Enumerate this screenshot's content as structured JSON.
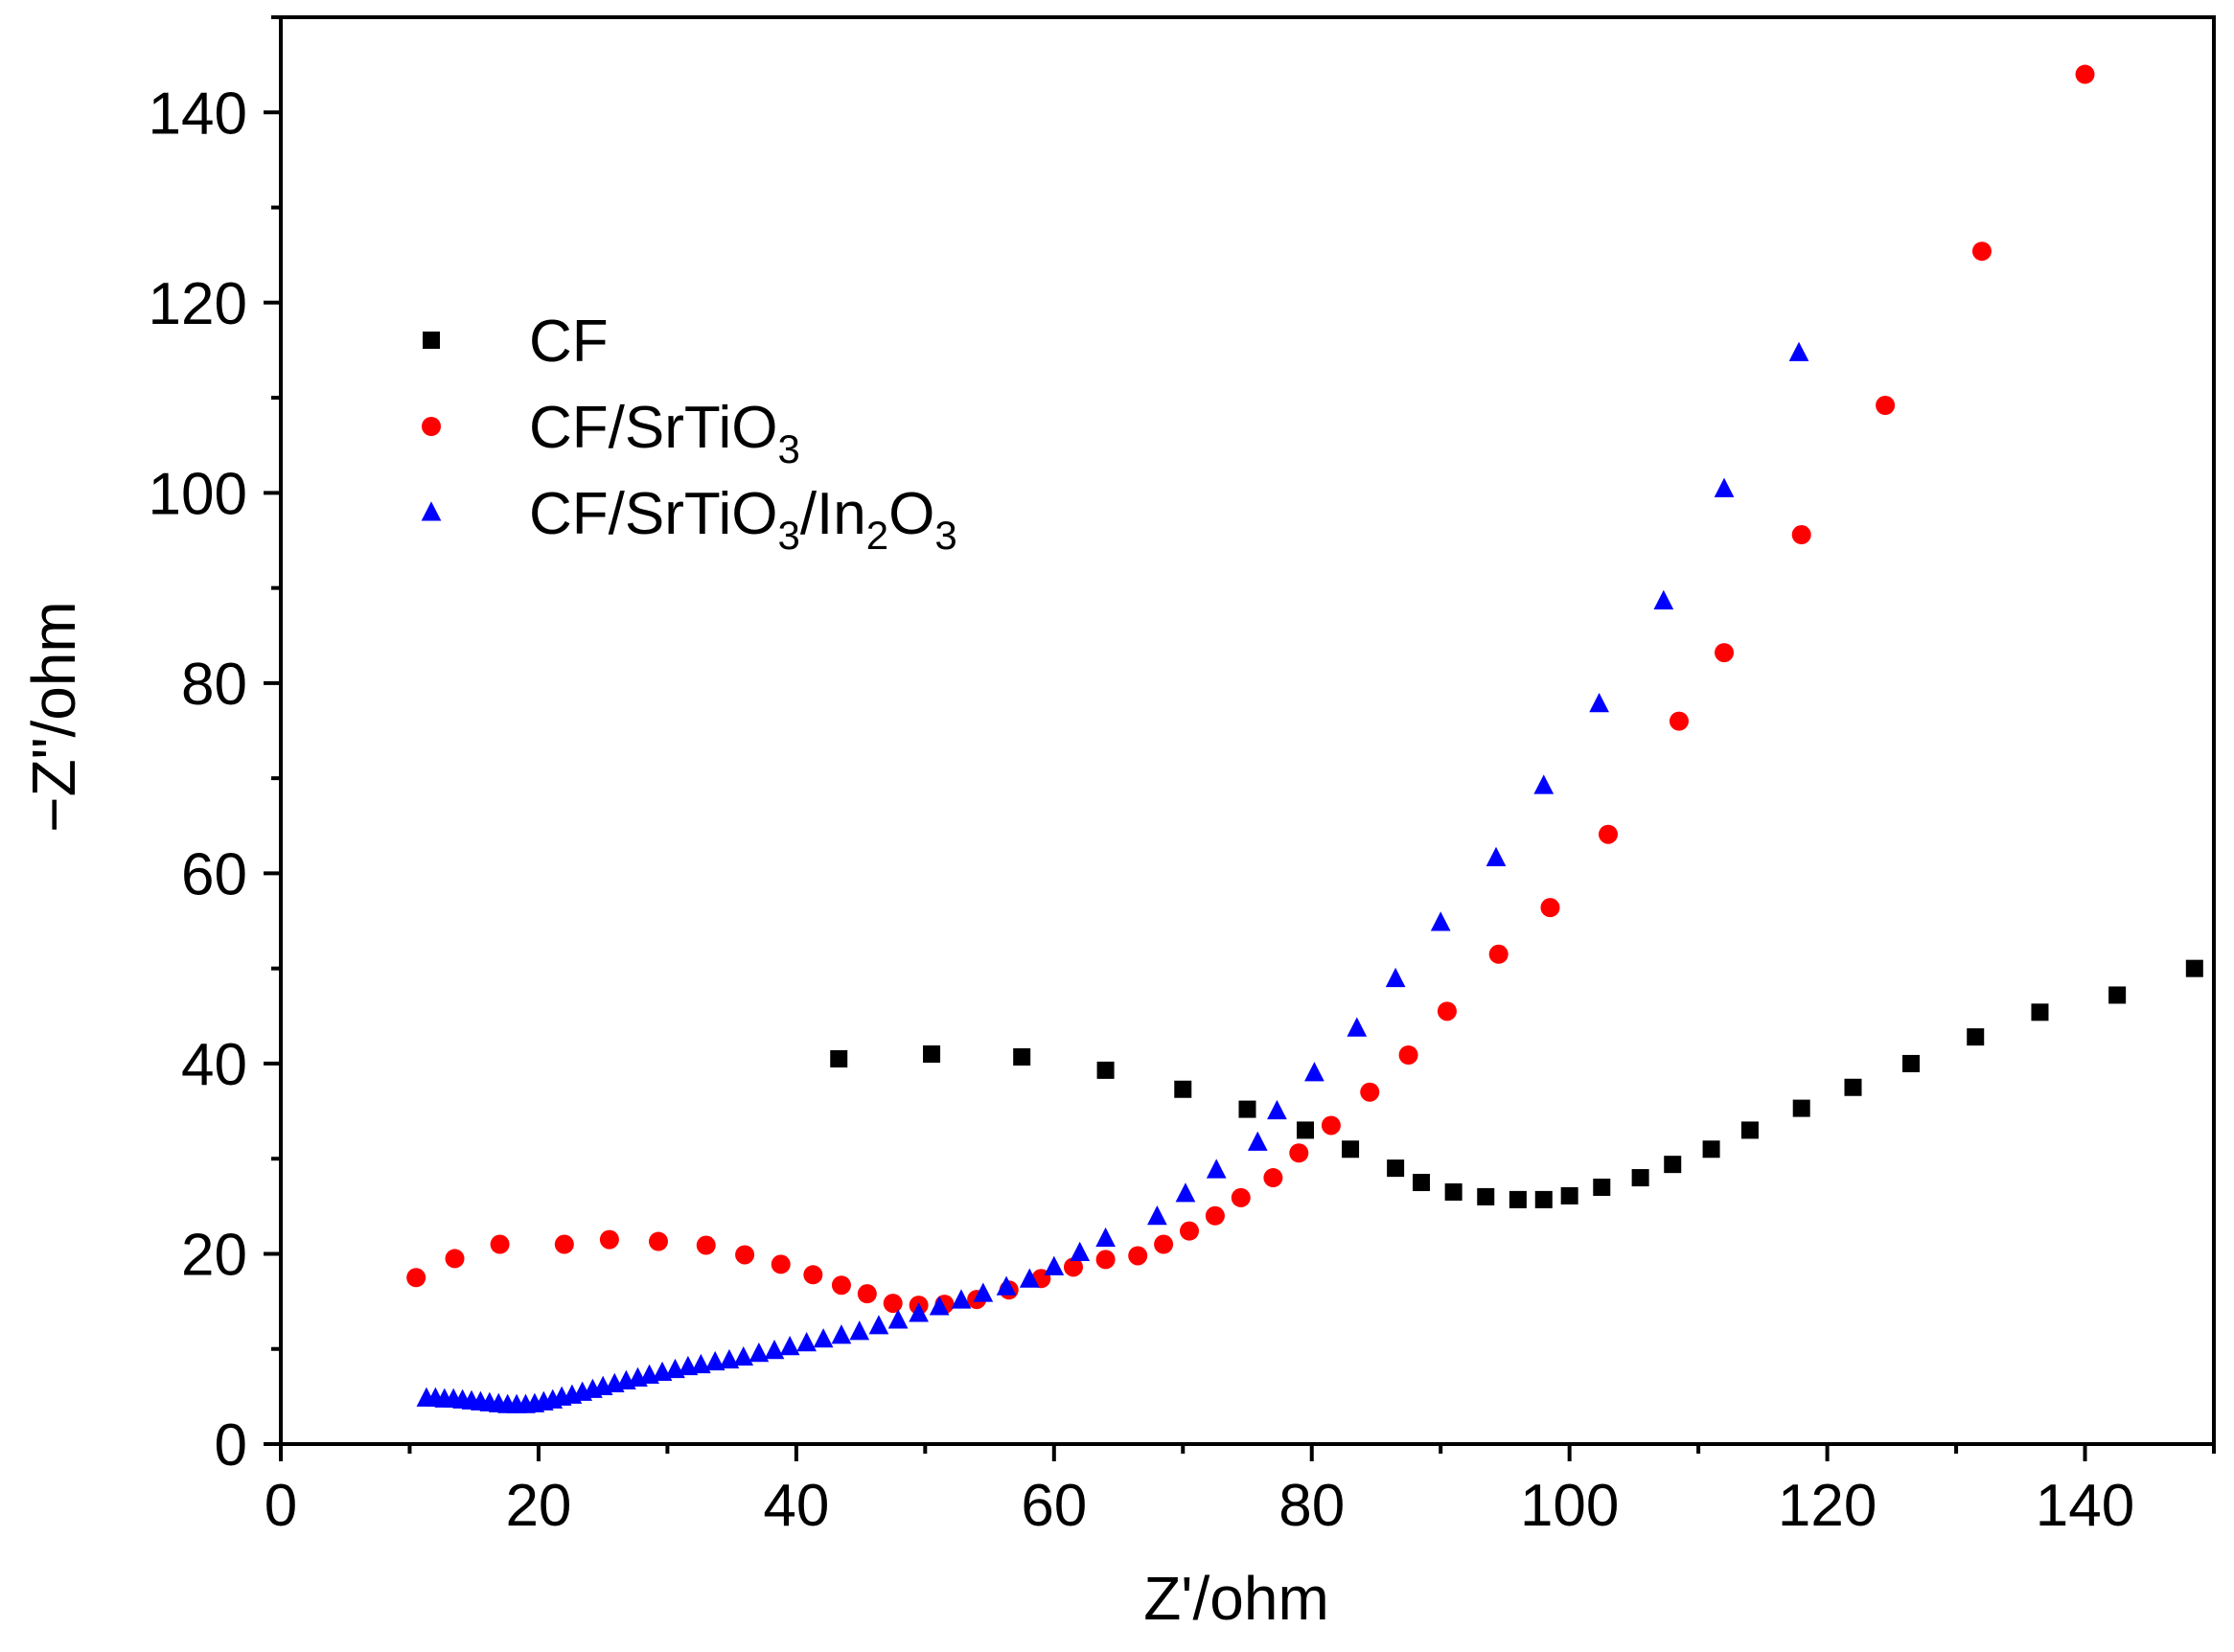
{
  "chart_data": {
    "type": "scatter",
    "title": "",
    "xlabel": "Z'/ohm",
    "ylabel": "−Z\"/ohm",
    "xlim": [
      0,
      150
    ],
    "ylim": [
      0,
      150
    ],
    "xticks": [
      0,
      20,
      40,
      60,
      80,
      100,
      120,
      140
    ],
    "yticks": [
      0,
      20,
      40,
      60,
      80,
      100,
      120,
      140
    ],
    "grid": false,
    "legend_position": "top-left",
    "series": [
      {
        "name": "CF",
        "legend_parts": [
          {
            "t": "CF",
            "sub": false
          }
        ],
        "marker": "square",
        "color": "#000000",
        "x": [
          43.3,
          50.5,
          57.5,
          64,
          70,
          75,
          79.5,
          83,
          86.5,
          88.5,
          91,
          93.5,
          96,
          98,
          100,
          102.5,
          105.5,
          108,
          111,
          114,
          118,
          122,
          126.5,
          131.5,
          136.5,
          142.5,
          148.5
        ],
        "y": [
          40.5,
          41,
          40.7,
          39.3,
          37.3,
          35.2,
          33,
          31,
          29,
          27.5,
          26.5,
          26,
          25.7,
          25.7,
          26.1,
          27,
          28,
          29.4,
          31,
          33,
          35.3,
          37.5,
          40,
          42.8,
          45.4,
          47.2,
          50
        ]
      },
      {
        "name": "CF/SrTiO3",
        "legend_parts": [
          {
            "t": "CF/SrTiO",
            "sub": false
          },
          {
            "t": "3",
            "sub": true
          }
        ],
        "marker": "circle",
        "color": "#ff0000",
        "x": [
          10.5,
          13.5,
          17,
          22,
          25.5,
          29.3,
          33,
          36,
          38.8,
          41.3,
          43.5,
          45.5,
          47.5,
          49.5,
          51.5,
          54,
          56.5,
          59,
          61.5,
          64,
          66.5,
          68.5,
          70.5,
          72.5,
          74.5,
          77,
          79,
          81.5,
          84.5,
          87.5,
          90.5,
          94.5,
          98.5,
          103,
          108.5,
          112,
          118,
          124.5,
          132,
          140
        ],
        "y": [
          17.5,
          19.5,
          21,
          21,
          21.5,
          21.3,
          20.9,
          19.9,
          18.9,
          17.8,
          16.7,
          15.8,
          14.8,
          14.6,
          14.7,
          15.2,
          16.2,
          17.4,
          18.6,
          19.4,
          19.8,
          21,
          22.4,
          24,
          25.9,
          28,
          30.6,
          33.5,
          37,
          40.9,
          45.5,
          51.5,
          56.4,
          64.1,
          76,
          83.2,
          95.6,
          109.2,
          125.4,
          144
        ]
      },
      {
        "name": "CF/SrTiO3/In2O3",
        "legend_parts": [
          {
            "t": "CF/SrTiO",
            "sub": false
          },
          {
            "t": "3",
            "sub": true
          },
          {
            "t": "/In",
            "sub": false
          },
          {
            "t": "2",
            "sub": true
          },
          {
            "t": "O",
            "sub": false
          },
          {
            "t": "3",
            "sub": true
          }
        ],
        "marker": "triangle",
        "color": "#0000ff",
        "x": [
          11.3,
          12,
          12.7,
          13.4,
          14.1,
          14.8,
          15.5,
          16.2,
          16.9,
          17.6,
          18.3,
          19,
          19.7,
          20.4,
          21.1,
          21.8,
          22.6,
          23.4,
          24.2,
          25,
          25.9,
          26.8,
          27.7,
          28.6,
          29.6,
          30.6,
          31.6,
          32.6,
          33.7,
          34.8,
          35.9,
          37.1,
          38.3,
          39.5,
          40.8,
          42.1,
          43.5,
          44.9,
          46.4,
          47.9,
          49.5,
          51.1,
          52.8,
          54.5,
          56.3,
          58.1,
          60,
          62,
          64,
          68,
          70.2,
          72.6,
          75.8,
          77.3,
          80.2,
          83.5,
          86.5,
          90,
          94.3,
          98,
          102.3,
          107.3,
          112,
          117.8
        ],
        "y": [
          4.8,
          4.8,
          4.7,
          4.7,
          4.6,
          4.5,
          4.4,
          4.3,
          4.2,
          4.1,
          4.1,
          4.1,
          4.2,
          4.4,
          4.6,
          4.9,
          5.1,
          5.4,
          5.7,
          6.0,
          6.3,
          6.6,
          6.9,
          7.2,
          7.5,
          7.8,
          8.1,
          8.3,
          8.6,
          8.8,
          9.1,
          9.5,
          9.8,
          10.2,
          10.6,
          11,
          11.4,
          11.8,
          12.4,
          13,
          13.7,
          14.4,
          15.1,
          15.8,
          16.5,
          17.3,
          18.6,
          20.1,
          21.6,
          23.9,
          26.3,
          28.8,
          31.7,
          35,
          39,
          43.7,
          48.9,
          54.8,
          61.6,
          69.2,
          77.8,
          88.6,
          100.4,
          114.7
        ]
      }
    ]
  }
}
